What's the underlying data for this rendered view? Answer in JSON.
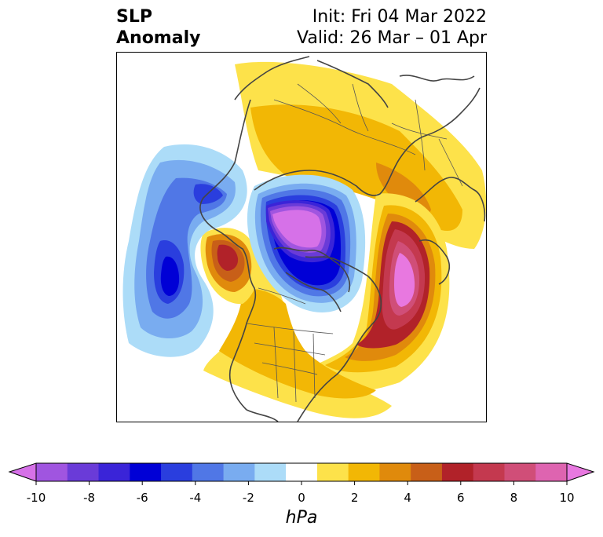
{
  "title": {
    "left_line1": "SLP",
    "left_line2": "Anomaly",
    "init": "Init: Fri 04 Mar 2022",
    "valid": "Valid: 26 Mar – 01 Apr"
  },
  "colorbar": {
    "label": "hPa",
    "ticks": [
      "-10",
      "-8",
      "-6",
      "-4",
      "-2",
      "0",
      "2",
      "4",
      "6",
      "8",
      "10"
    ],
    "extend": "both",
    "colors": [
      "#d671e8",
      "#a055e0",
      "#6a3bd8",
      "#3a24d8",
      "#0000d6",
      "#2a3ede",
      "#5077e6",
      "#79acf0",
      "#acdcf8",
      "#ffffff",
      "#fde24a",
      "#f2b705",
      "#e08a0c",
      "#c85f18",
      "#b12229",
      "#c4394f",
      "#d04e78",
      "#de64b0",
      "#e878e0"
    ]
  },
  "map": {
    "projection": "north-polar stereographic",
    "variable": "sea level pressure anomaly",
    "features": [
      {
        "name": "arctic-low",
        "sign": "negative",
        "peak": "-10"
      },
      {
        "name": "north-pacific-low",
        "sign": "negative",
        "peak": "-6"
      },
      {
        "name": "north-atlantic-high",
        "sign": "positive",
        "peak": "10"
      },
      {
        "name": "gulf-of-alaska-high",
        "sign": "positive",
        "peak": "6"
      },
      {
        "name": "eurasian-high",
        "sign": "positive",
        "peak": "2"
      }
    ]
  }
}
